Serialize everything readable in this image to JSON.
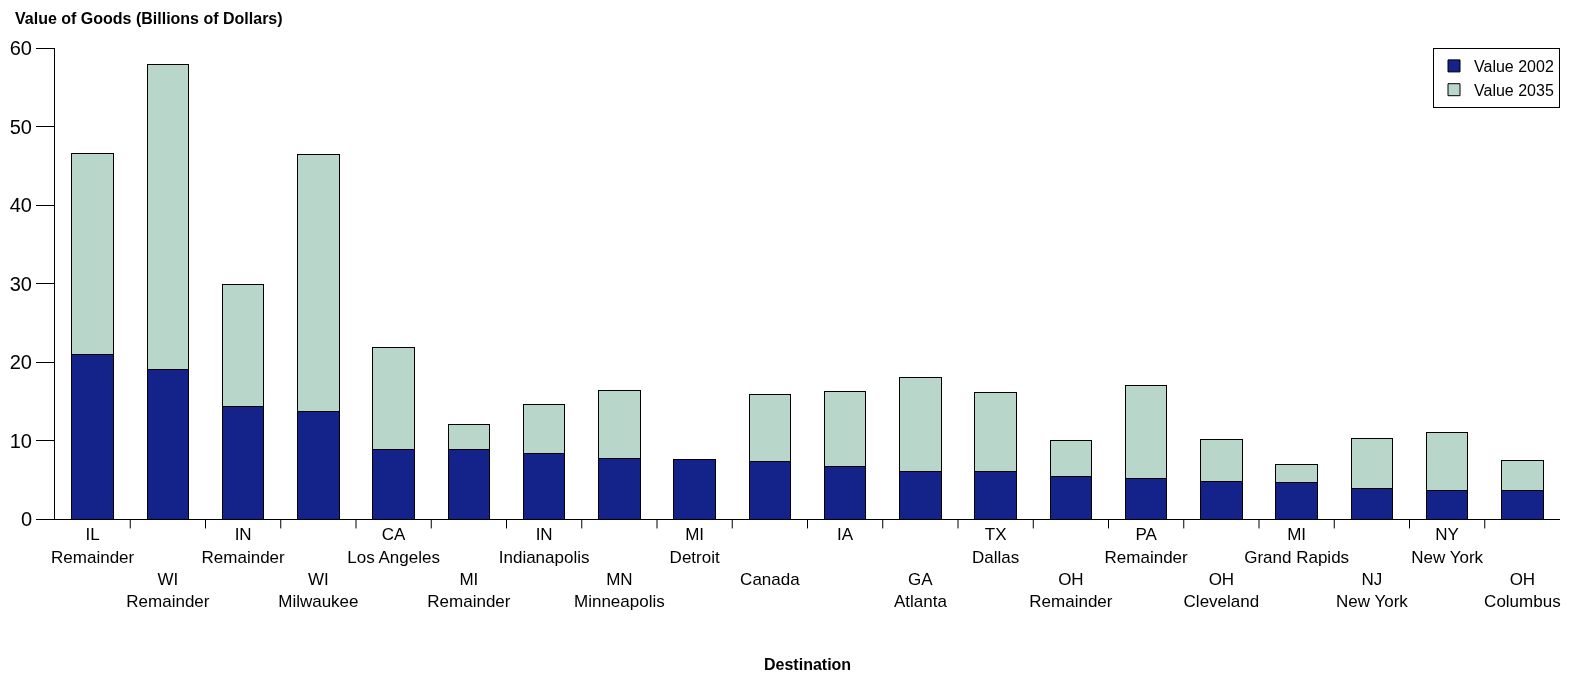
{
  "chart_data": {
    "type": "bar",
    "stacked": true,
    "ylabel": "Value of Goods (Billions of Dollars)",
    "xlabel": "Destination",
    "categories": [
      "IL\nRemainder",
      "WI\nRemainder",
      "IN\nRemainder",
      "WI\nMilwaukee",
      "CA\nLos Angeles",
      "MI\nRemainder",
      "IN\nIndianapolis",
      "MN\nMinneapolis",
      "MI\nDetroit",
      "Canada",
      "IA",
      "GA\nAtlanta",
      "TX\nDallas",
      "OH\nRemainder",
      "PA\nRemainder",
      "OH\nCleveland",
      "MI\nGrand Rapids",
      "NJ\nNew York",
      "NY\nNew York",
      "OH\nColumbus"
    ],
    "series": [
      {
        "name": "Value 2002",
        "color": "#14238a",
        "values": [
          20.9,
          19.0,
          14.3,
          13.7,
          8.9,
          8.8,
          8.3,
          7.7,
          7.6,
          7.3,
          6.7,
          6.0,
          6.0,
          5.4,
          5.1,
          4.8,
          4.6,
          3.9,
          3.6,
          3.6
        ]
      },
      {
        "name": "Value 2035",
        "color": "#b9d6cb",
        "values": [
          25.7,
          38.9,
          15.6,
          32.7,
          12.9,
          3.3,
          6.3,
          8.7,
          null,
          8.6,
          9.5,
          12.0,
          10.1,
          4.6,
          11.9,
          5.3,
          2.4,
          6.4,
          7.4,
          3.8
        ]
      }
    ],
    "ylim": [
      0,
      60
    ],
    "yticks": [
      0,
      10,
      20,
      30,
      40,
      50,
      60
    ],
    "grid": false,
    "legend": "top right"
  }
}
